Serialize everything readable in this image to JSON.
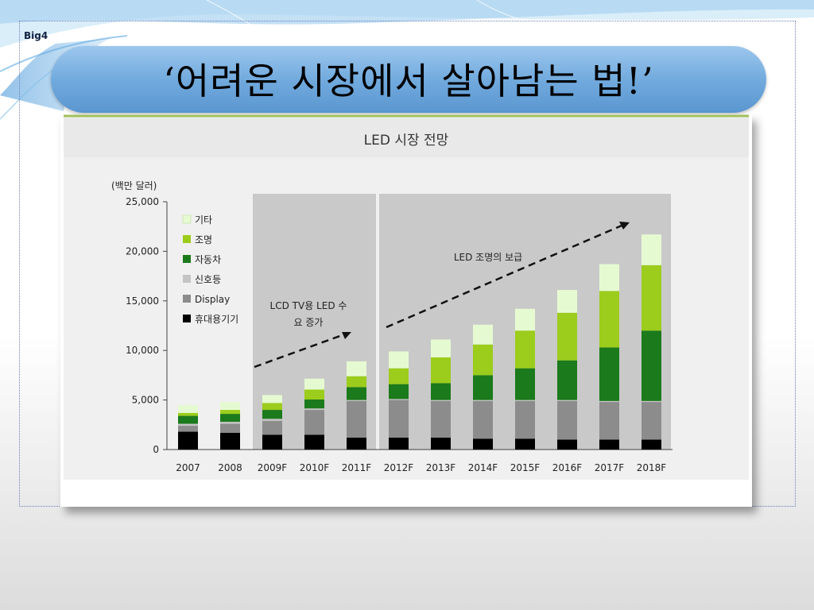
{
  "slide": {
    "label": "Big4",
    "title": "‘어려운 시장에서 살아남는 법!’"
  },
  "colors": {
    "series": [
      "#000000",
      "#8c8c8c",
      "#c4c4c4",
      "#1b7a1b",
      "#9ccc1c",
      "#e6fad2"
    ],
    "shade": "#c9c9c9",
    "plot_bg": "#f0f0f0"
  },
  "chart_data": {
    "type": "bar",
    "stacked": true,
    "title": "LED 시장 전망",
    "ylabel": "(백만 달러)",
    "ylim": [
      0,
      25000
    ],
    "yticks": [
      "0",
      "5,000",
      "10,000",
      "15,000",
      "20,000",
      "25,000"
    ],
    "yticks_values": [
      0,
      5000,
      10000,
      15000,
      20000,
      25000
    ],
    "categories": [
      "2007",
      "2008",
      "2009F",
      "2010F",
      "2011F",
      "2012F",
      "2013F",
      "2014F",
      "2015F",
      "2016F",
      "2017F",
      "2018F"
    ],
    "legend_position": "top-left",
    "series": [
      {
        "name": "휴대용기기",
        "values": [
          1800,
          1700,
          1500,
          1500,
          1200,
          1200,
          1200,
          1100,
          1100,
          1000,
          1000,
          1000
        ]
      },
      {
        "name": "Display",
        "values": [
          600,
          900,
          1400,
          2500,
          3700,
          3800,
          3700,
          3800,
          3800,
          3900,
          3800,
          3800
        ]
      },
      {
        "name": "신호등",
        "values": [
          200,
          200,
          200,
          150,
          100,
          100,
          100,
          100,
          100,
          100,
          100,
          100
        ]
      },
      {
        "name": "자동차",
        "values": [
          800,
          800,
          900,
          900,
          1300,
          1500,
          1700,
          2500,
          3200,
          4000,
          5400,
          7100
        ]
      },
      {
        "name": "조명",
        "values": [
          300,
          400,
          700,
          1000,
          1100,
          1600,
          2600,
          3100,
          3800,
          4800,
          5700,
          6600
        ]
      },
      {
        "name": "기타",
        "values": [
          800,
          800,
          800,
          1100,
          1500,
          1700,
          1800,
          2000,
          2200,
          2300,
          2700,
          3100
        ]
      }
    ],
    "shaded_ranges": [
      [
        "2009F",
        "2011F"
      ],
      [
        "2012F",
        "2018F"
      ]
    ],
    "annotations": [
      {
        "text": "LCD TV용 LED 수",
        "text2": "요 증가"
      },
      {
        "text": "LED 조명의 보급"
      }
    ]
  }
}
